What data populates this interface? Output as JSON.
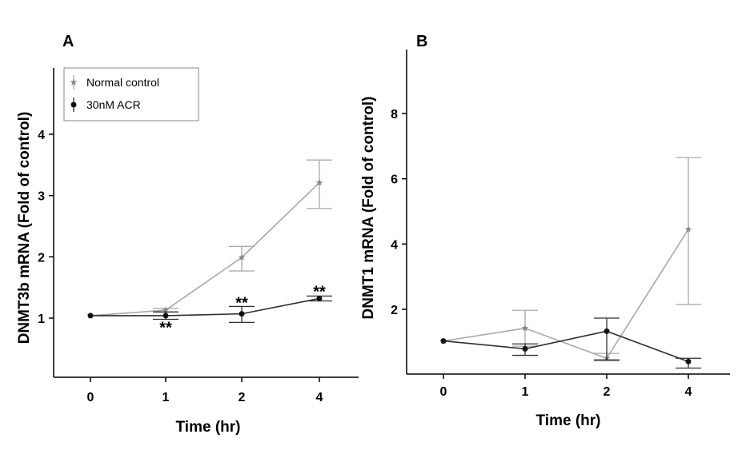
{
  "chart_data": [
    {
      "panel": "A",
      "type": "line",
      "categories": [
        "0",
        "1",
        "2",
        "4"
      ],
      "xlabel": "Time (hr)",
      "ylabel": "DNMT3b mRNA (Fold of control)",
      "yticks": [
        "1",
        "2",
        "3",
        "4"
      ],
      "ylim": [
        0.1,
        4.9
      ],
      "legend": "top-left",
      "series": [
        {
          "name": "Normal control",
          "color": "#a8a8a8",
          "values": [
            1.04,
            1.13,
            1.99,
            3.21
          ],
          "err_low": [
            0,
            0.03,
            0.22,
            0.42
          ],
          "err_high": [
            0,
            0.03,
            0.18,
            0.37
          ]
        },
        {
          "name": "30nM ACR",
          "color": "#2f2f2f",
          "values": [
            1.04,
            1.04,
            1.07,
            1.32
          ],
          "err_low": [
            0,
            0.06,
            0.14,
            0.04
          ],
          "err_high": [
            0,
            0.06,
            0.12,
            0.04
          ]
        }
      ],
      "annotations": [
        {
          "text": "**",
          "category": "1",
          "y": 0.86
        },
        {
          "text": "**",
          "category": "2",
          "y": 1.27
        },
        {
          "text": "**",
          "category": "4",
          "y": 1.45
        }
      ]
    },
    {
      "panel": "B",
      "type": "line",
      "categories": [
        "0",
        "1",
        "2",
        "4"
      ],
      "xlabel": "Time (hr)",
      "ylabel": "DNMT1 mRNA (Fold of control)",
      "yticks": [
        "2",
        "4",
        "6",
        "8"
      ],
      "ylim": [
        0.2,
        10
      ],
      "series": [
        {
          "name": "Normal control",
          "color": "#a8a8a8",
          "values": [
            1.03,
            1.42,
            0.5,
            4.45
          ],
          "err_low": [
            0,
            0.55,
            0.08,
            2.3
          ],
          "err_high": [
            0,
            0.55,
            0.15,
            2.2
          ]
        },
        {
          "name": "30nM ACR",
          "color": "#2f2f2f",
          "values": [
            1.03,
            0.79,
            1.33,
            0.4
          ],
          "err_low": [
            0,
            0.2,
            0.88,
            0.2
          ],
          "err_high": [
            0,
            0.15,
            0.4,
            0.1
          ]
        }
      ]
    }
  ]
}
